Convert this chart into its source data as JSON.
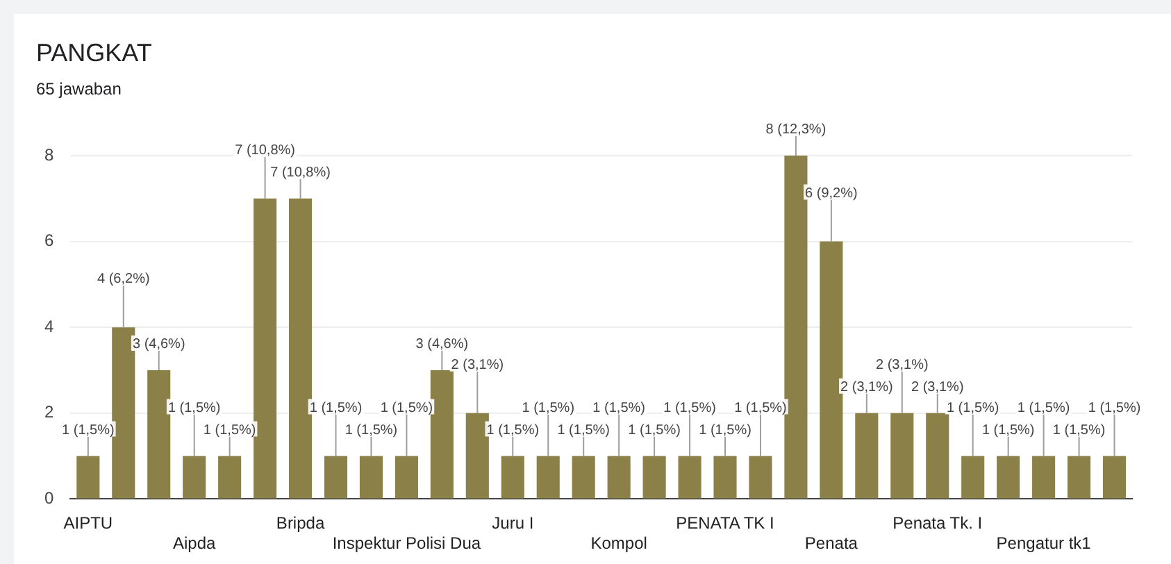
{
  "chart_data": {
    "type": "bar",
    "title": "PANGKAT",
    "subtitle": "65 jawaban",
    "categories": [
      "AIPTU",
      null,
      null,
      "Aipda",
      null,
      null,
      "Bripda",
      null,
      null,
      "Inspektur Polisi Dua",
      null,
      null,
      "Juru I",
      null,
      null,
      "Kompol",
      null,
      null,
      "PENATA TK I",
      null,
      null,
      "Penata",
      null,
      null,
      "Penata Tk. I",
      null,
      null,
      "Pengatur tk1",
      null,
      null
    ],
    "values": [
      1,
      4,
      3,
      1,
      1,
      7,
      7,
      1,
      1,
      1,
      3,
      2,
      1,
      1,
      1,
      1,
      1,
      1,
      1,
      1,
      8,
      6,
      2,
      2,
      2,
      1,
      1,
      1,
      1,
      1
    ],
    "value_labels": [
      "1 (1,5%)",
      "4 (6,2%)",
      "3 (4,6%)",
      "1 (1,5%)",
      "1 (1,5%)",
      "7 (10,8%)",
      "7 (10,8%)",
      "1 (1,5%)",
      "1 (1,5%)",
      "1 (1,5%)",
      "3 (4,6%)",
      "2 (3,1%)",
      "1 (1,5%)",
      "1 (1,5%)",
      "1 (1,5%)",
      "1 (1,5%)",
      "1 (1,5%)",
      "1 (1,5%)",
      "1 (1,5%)",
      "1 (1,5%)",
      "8 (12,3%)",
      "6 (9,2%)",
      "2 (3,1%)",
      "2 (3,1%)",
      "2 (3,1%)",
      "1 (1,5%)",
      "1 (1,5%)",
      "1 (1,5%)",
      "1 (1,5%)",
      "1 (1,5%)"
    ],
    "color": "#8b8048",
    "ylim": [
      0,
      8
    ],
    "yticks": [
      0,
      2,
      4,
      6,
      8
    ],
    "grid": "y",
    "legend": false
  }
}
